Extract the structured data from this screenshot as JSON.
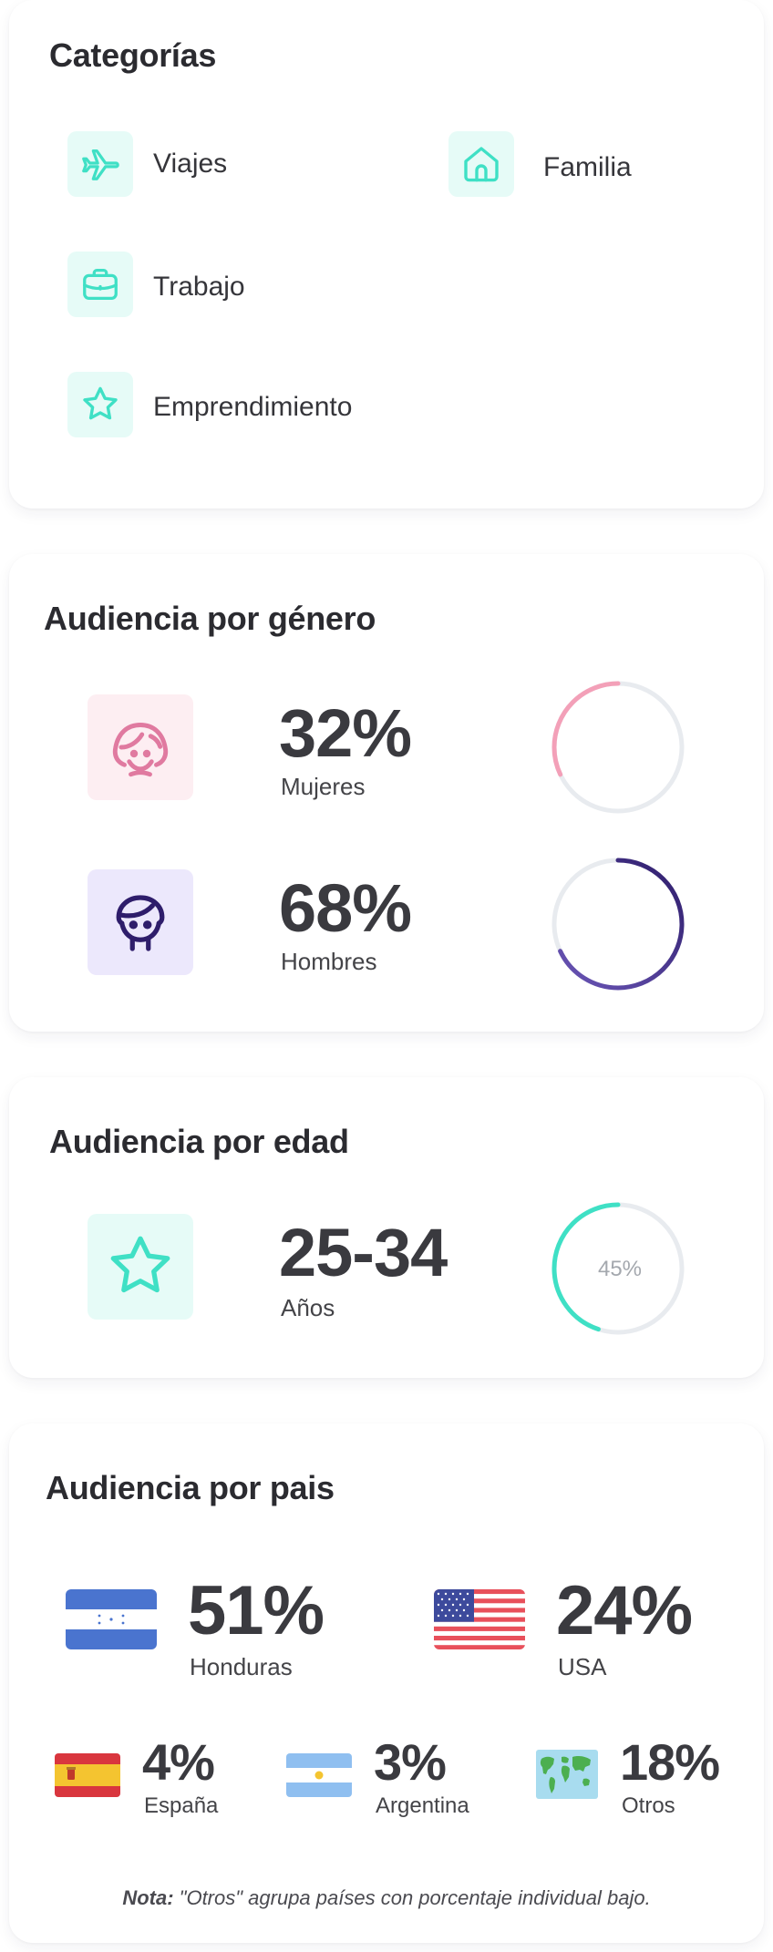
{
  "categories": {
    "title": "Categorías",
    "items": [
      {
        "label": "Viajes",
        "icon": "airplane-icon"
      },
      {
        "label": "Familia",
        "icon": "home-icon"
      },
      {
        "label": "Trabajo",
        "icon": "briefcase-icon"
      },
      {
        "label": "Emprendimiento",
        "icon": "star-icon"
      }
    ]
  },
  "gender": {
    "title": "Audiencia por género",
    "rows": [
      {
        "value": "32%",
        "label": "Mujeres",
        "percent": 32,
        "color": "#f3a0b8",
        "icon": "woman-icon"
      },
      {
        "value": "68%",
        "label": "Hombres",
        "percent": 68,
        "color": "#2e1d6b",
        "icon": "man-icon"
      }
    ]
  },
  "age": {
    "title": "Audiencia por edad",
    "range": "25-34",
    "unit": "Años",
    "percent_label": "45%",
    "percent": 45,
    "color": "#3fe0c5"
  },
  "country": {
    "title": "Audiencia por pais",
    "items": [
      {
        "value": "51%",
        "name": "Honduras",
        "flag": "honduras-flag-icon"
      },
      {
        "value": "24%",
        "name": "USA",
        "flag": "usa-flag-icon"
      },
      {
        "value": "4%",
        "name": "España",
        "flag": "spain-flag-icon"
      },
      {
        "value": "3%",
        "name": "Argentina",
        "flag": "argentina-flag-icon"
      },
      {
        "value": "18%",
        "name": "Otros",
        "flag": "world-map-icon"
      }
    ],
    "note_prefix": "Nota:",
    "note_text": " \"Otros\" agrupa países con porcentaje individual bajo."
  },
  "colors": {
    "accent_mint": "#3fe0c5",
    "mint_bg": "#e6fbf7",
    "pink": "#e07aa0",
    "pink_bg": "#fdeef2",
    "purple": "#2e1d6b",
    "purple_bg": "#ece8fc",
    "ring_track": "#e8ebef"
  }
}
